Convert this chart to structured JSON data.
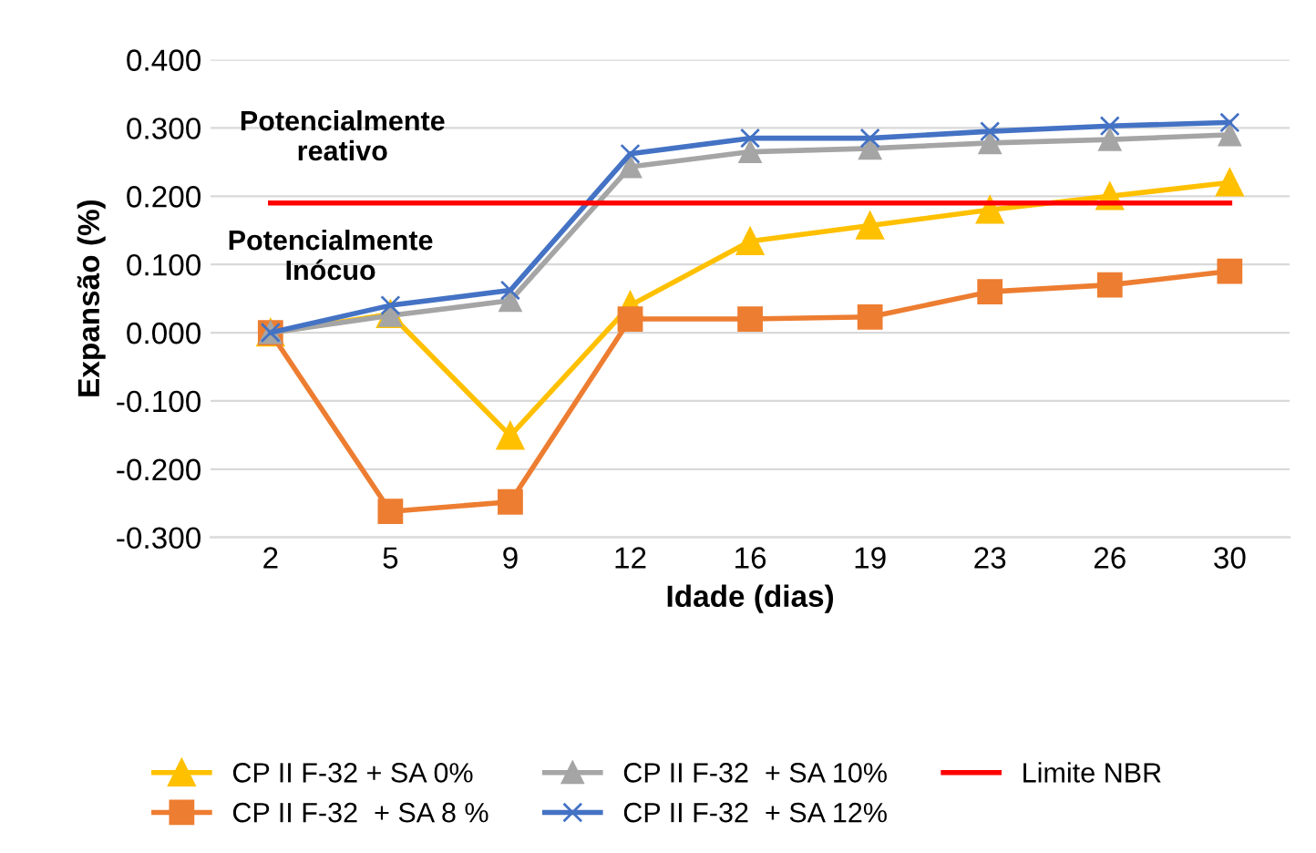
{
  "chart_data": {
    "type": "line",
    "xlabel": "Idade (dias)",
    "ylabel": "Expansão (%)",
    "categories": [
      "2",
      "5",
      "9",
      "12",
      "16",
      "19",
      "23",
      "26",
      "30"
    ],
    "series": [
      {
        "name": "CP II F-32 + SA 0%",
        "color": "#ffc000",
        "marker": "triangle",
        "values": [
          0,
          0.027,
          -0.151,
          0.04,
          0.134,
          0.157,
          0.18,
          0.2,
          0.22
        ]
      },
      {
        "name": "CP II F-32  + SA 8 %",
        "color": "#ed7d31",
        "marker": "square",
        "values": [
          0,
          -0.262,
          -0.248,
          0.02,
          0.02,
          0.023,
          0.06,
          0.07,
          0.09
        ]
      },
      {
        "name": "CP II F-32  + SA 10%",
        "color": "#a5a5a5",
        "marker": "triangle",
        "values": [
          0,
          0.025,
          0.047,
          0.243,
          0.265,
          0.27,
          0.278,
          0.283,
          0.29
        ]
      },
      {
        "name": "CP II F-32  + SA 12%",
        "color": "#4472c4",
        "marker": "cross",
        "values": [
          0,
          0.04,
          0.062,
          0.262,
          0.285,
          0.285,
          0.295,
          0.303,
          0.308
        ]
      },
      {
        "name": "Limite NBR",
        "color": "#ff0000",
        "marker": "none",
        "values": [
          0.19,
          0.19,
          0.19,
          0.19,
          0.19,
          0.19,
          0.19,
          0.19,
          0.19
        ]
      }
    ],
    "ylim": [
      -0.3,
      0.4
    ],
    "yticks": [
      {
        "value": -0.3,
        "label": "-0.300"
      },
      {
        "value": -0.2,
        "label": "-0.200"
      },
      {
        "value": -0.1,
        "label": "-0.100"
      },
      {
        "value": 0,
        "label": "0.000"
      },
      {
        "value": 0.1,
        "label": "0.100"
      },
      {
        "value": 0.2,
        "label": "0.200"
      },
      {
        "value": 0.3,
        "label": "0.300"
      },
      {
        "value": 0.4,
        "label": "0.400"
      }
    ],
    "annotations": [
      "Potencialmente\nreativo",
      "Potencialmente\nInócuo"
    ],
    "grid": "y",
    "legend": "bottom"
  }
}
